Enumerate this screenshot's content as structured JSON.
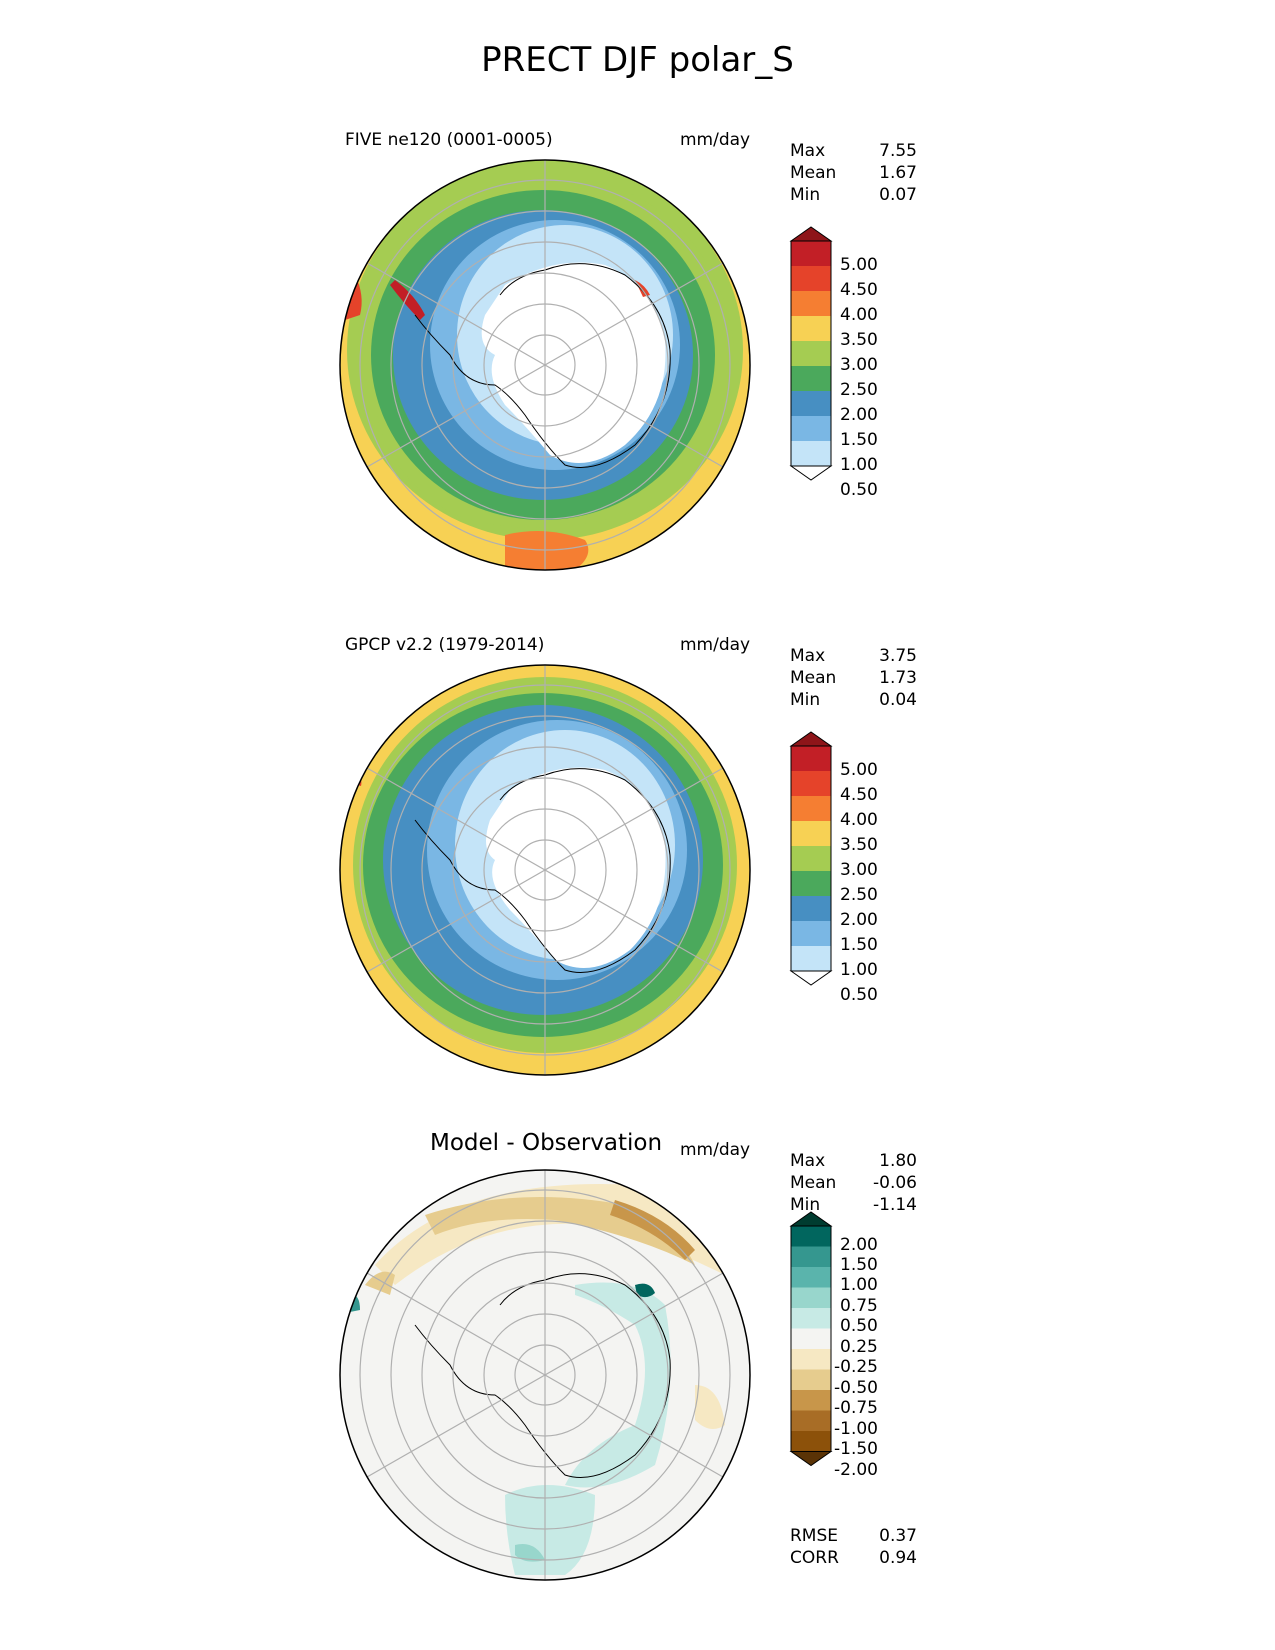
{
  "figure_title": "PRECT DJF polar_S",
  "panels": [
    {
      "title": "FIVE ne120 (0001-0005)",
      "units": "mm/day",
      "stats": {
        "max_label": "Max",
        "max": "7.55",
        "mean_label": "Mean",
        "mean": "1.67",
        "min_label": "Min",
        "min": "0.07"
      }
    },
    {
      "title": "GPCP v2.2 (1979-2014)",
      "units": "mm/day",
      "stats": {
        "max_label": "Max",
        "max": "3.75",
        "mean_label": "Mean",
        "mean": "1.73",
        "min_label": "Min",
        "min": "0.04"
      }
    },
    {
      "title": "Model - Observation",
      "units": "mm/day",
      "stats": {
        "max_label": "Max",
        "max": "1.80",
        "mean_label": "Mean",
        "mean": "-0.06",
        "min_label": "Min",
        "min": "-1.14"
      },
      "metrics": {
        "rmse_label": "RMSE",
        "rmse": "0.37",
        "corr_label": "CORR",
        "corr": "0.94"
      }
    }
  ],
  "colorbars": {
    "precip": {
      "labels": [
        "5.00",
        "4.50",
        "4.00",
        "3.50",
        "3.00",
        "2.50",
        "2.00",
        "1.50",
        "1.00",
        "0.50"
      ],
      "colors": [
        "#8e1519",
        "#c21f26",
        "#e5432a",
        "#f57e32",
        "#f7d154",
        "#a5cc52",
        "#4ba95c",
        "#478fc2",
        "#7ab7e4",
        "#c4e4f8",
        "#ffffff"
      ]
    },
    "diff": {
      "labels": [
        "2.00",
        "1.50",
        "1.00",
        "0.75",
        "0.50",
        "0.25",
        "-0.25",
        "-0.50",
        "-0.75",
        "-1.00",
        "-1.50",
        "-2.00"
      ],
      "colors": [
        "#003c30",
        "#01665e",
        "#35978f",
        "#5ab4ac",
        "#98d6cc",
        "#c7eae5",
        "#f4f4f2",
        "#f6e8c3",
        "#e6cc8e",
        "#c8964a",
        "#a86d26",
        "#8c510a",
        "#5a3306"
      ]
    }
  },
  "chart_data": [
    {
      "type": "heatmap",
      "projection": "south polar stereographic",
      "title": "FIVE ne120 (0001-0005)",
      "units": "mm/day",
      "levels": [
        0.5,
        1.0,
        1.5,
        2.0,
        2.5,
        3.0,
        3.5,
        4.0,
        4.5,
        5.0
      ],
      "max": 7.55,
      "mean": 1.67,
      "min": 0.07
    },
    {
      "type": "heatmap",
      "projection": "south polar stereographic",
      "title": "GPCP v2.2 (1979-2014)",
      "units": "mm/day",
      "levels": [
        0.5,
        1.0,
        1.5,
        2.0,
        2.5,
        3.0,
        3.5,
        4.0,
        4.5,
        5.0
      ],
      "max": 3.75,
      "mean": 1.73,
      "min": 0.04
    },
    {
      "type": "heatmap",
      "projection": "south polar stereographic",
      "title": "Model - Observation",
      "units": "mm/day",
      "levels": [
        -2.0,
        -1.5,
        -1.0,
        -0.75,
        -0.5,
        -0.25,
        0.25,
        0.5,
        0.75,
        1.0,
        1.5,
        2.0
      ],
      "max": 1.8,
      "mean": -0.06,
      "min": -1.14,
      "rmse": 0.37,
      "corr": 0.94
    }
  ]
}
